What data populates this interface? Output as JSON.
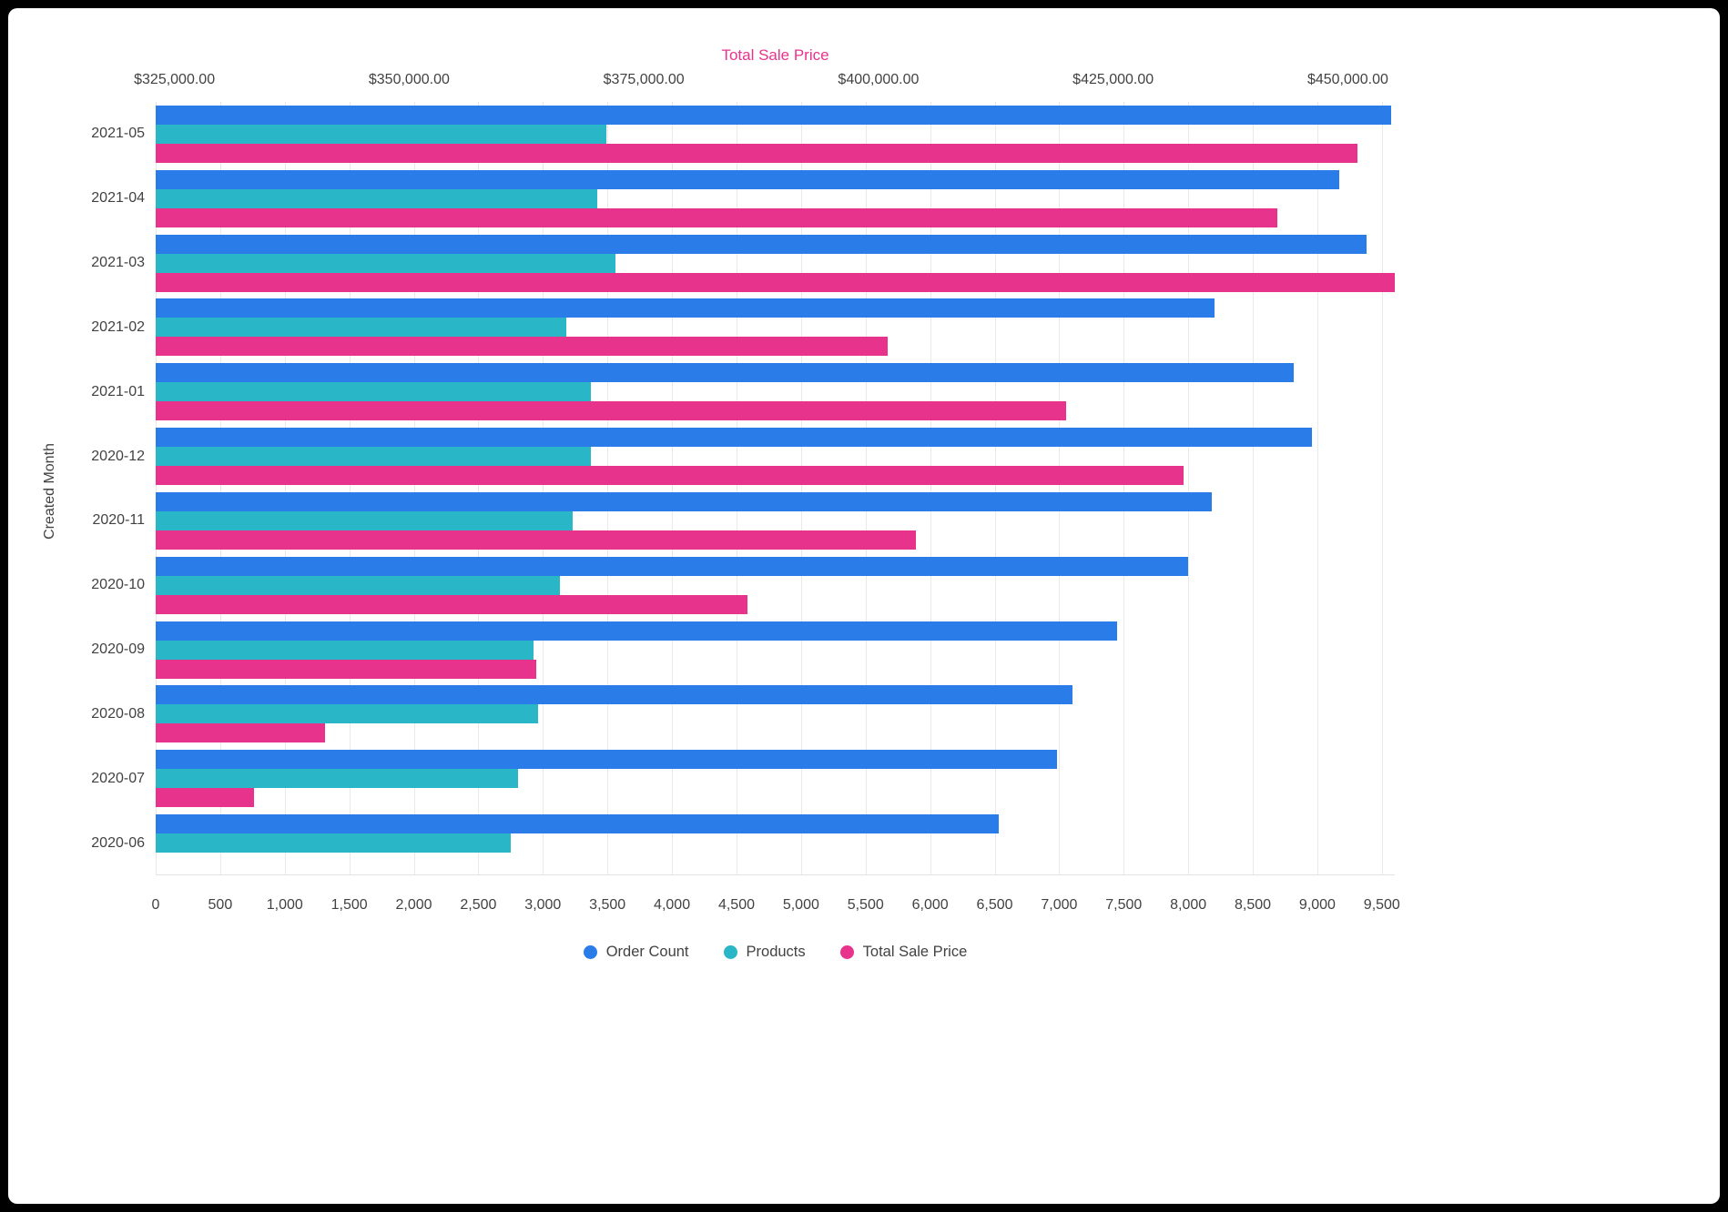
{
  "chart_data": {
    "type": "bar",
    "orientation": "horizontal",
    "top_axis_title": "Total Sale Price",
    "ylabel": "Created Month",
    "grid": true,
    "legend_position": "bottom",
    "top_axis_title_color": "#e8338c",
    "categories": [
      "2021-05",
      "2021-04",
      "2021-03",
      "2021-02",
      "2021-01",
      "2020-12",
      "2020-11",
      "2020-10",
      "2020-09",
      "2020-08",
      "2020-07",
      "2020-06"
    ],
    "series": [
      {
        "name": "Order Count",
        "axis": "count",
        "color": "#2a7ce8",
        "values": [
          9570,
          9170,
          9380,
          8200,
          8820,
          8960,
          8180,
          8000,
          7450,
          7100,
          6980,
          6530
        ]
      },
      {
        "name": "Products",
        "axis": "count",
        "color": "#29b6c6",
        "values": [
          3490,
          3420,
          3560,
          3180,
          3370,
          3370,
          3230,
          3130,
          2930,
          2960,
          2810,
          2750
        ]
      },
      {
        "name": "Total Sale Price",
        "axis": "price",
        "color": "#e8338c",
        "values": [
          451000,
          442500,
          455000,
          401000,
          420000,
          432500,
          404000,
          386000,
          363500,
          341000,
          333500,
          323000
        ]
      }
    ],
    "count_axis": {
      "min": 0,
      "max": 9600,
      "ticks": [
        0,
        500,
        1000,
        1500,
        2000,
        2500,
        3000,
        3500,
        4000,
        4500,
        5000,
        5500,
        6000,
        6500,
        7000,
        7500,
        8000,
        8500,
        9000,
        9500
      ],
      "tick_labels": [
        "0",
        "500",
        "1,000",
        "1,500",
        "2,000",
        "2,500",
        "3,000",
        "3,500",
        "4,000",
        "4,500",
        "5,000",
        "5,500",
        "6,000",
        "6,500",
        "7,000",
        "7,500",
        "8,000",
        "8,500",
        "9,000",
        "9,500"
      ]
    },
    "price_axis": {
      "min": 323000,
      "max": 455000,
      "ticks": [
        325000,
        350000,
        375000,
        400000,
        425000,
        450000
      ],
      "tick_labels": [
        "$325,000.00",
        "$350,000.00",
        "$375,000.00",
        "$400,000.00",
        "$425,000.00",
        "$450,000.00"
      ]
    }
  }
}
